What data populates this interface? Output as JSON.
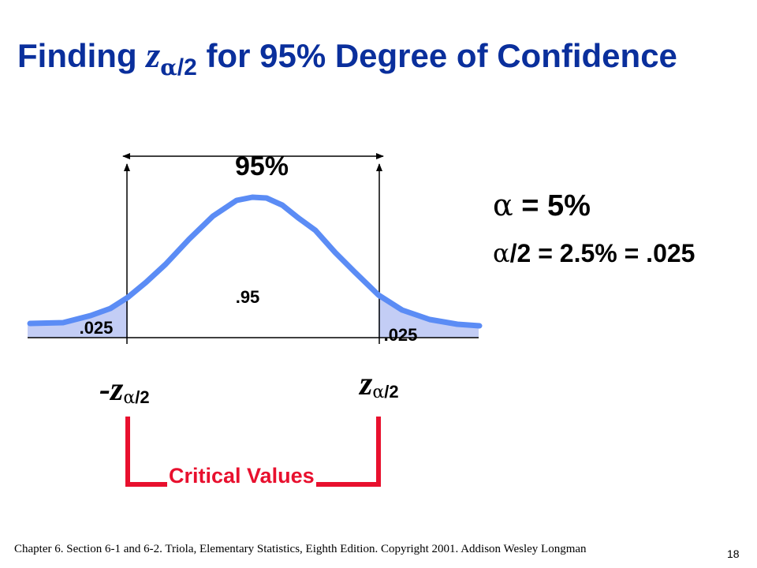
{
  "title": {
    "prefix": "Finding ",
    "z_symbol": "z",
    "subscript_alpha": "α",
    "subscript_rest": "/2",
    "suffix": " for 95% Degree of Confidence"
  },
  "diagram": {
    "confidence_label": "95%",
    "center_area_label": ".95",
    "left_tail_label": ".025",
    "right_tail_label": ".025",
    "left_critical_label": "-z",
    "right_critical_label": "z",
    "critical_subscript_alpha": "α",
    "critical_subscript_rest": "/2",
    "critical_values_label": "Critical Values"
  },
  "info": {
    "alpha_symbol": "α",
    "alpha_text": " = 5%",
    "half_alpha_symbol": "α",
    "half_alpha_text": "/2 = 2.5% = .025"
  },
  "footer": {
    "citation": "Chapter 6.  Section 6-1 and 6-2.  Triola,  Elementary Statistics, Eighth Edition. Copyright  2001.  Addison Wesley Longman",
    "page_number": "18"
  },
  "colors": {
    "title": "#0a2f9c",
    "curve": "#5b8cf5",
    "tail_fill": "#c3cdf5",
    "critical_bracket": "#e8102e"
  }
}
